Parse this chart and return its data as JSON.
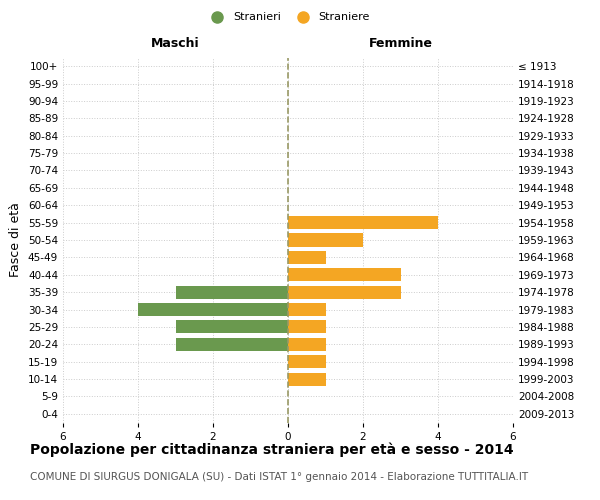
{
  "age_groups": [
    "0-4",
    "5-9",
    "10-14",
    "15-19",
    "20-24",
    "25-29",
    "30-34",
    "35-39",
    "40-44",
    "45-49",
    "50-54",
    "55-59",
    "60-64",
    "65-69",
    "70-74",
    "75-79",
    "80-84",
    "85-89",
    "90-94",
    "95-99",
    "100+"
  ],
  "birth_years": [
    "2009-2013",
    "2004-2008",
    "1999-2003",
    "1994-1998",
    "1989-1993",
    "1984-1988",
    "1979-1983",
    "1974-1978",
    "1969-1973",
    "1964-1968",
    "1959-1963",
    "1954-1958",
    "1949-1953",
    "1944-1948",
    "1939-1943",
    "1934-1938",
    "1929-1933",
    "1924-1928",
    "1919-1923",
    "1914-1918",
    "≤ 1913"
  ],
  "maschi_stranieri": [
    0,
    0,
    0,
    0,
    3,
    3,
    4,
    3,
    0,
    0,
    0,
    0,
    0,
    0,
    0,
    0,
    0,
    0,
    0,
    0,
    0
  ],
  "femmine_straniere": [
    0,
    0,
    1,
    1,
    1,
    1,
    1,
    3,
    3,
    1,
    2,
    4,
    0,
    0,
    0,
    0,
    0,
    0,
    0,
    0,
    0
  ],
  "stranieri_color": "#6a994e",
  "straniere_color": "#f4a623",
  "bar_height": 0.75,
  "xlim": 6,
  "title": "Popolazione per cittadinanza straniera per età e sesso - 2014",
  "subtitle": "COMUNE DI SIURGUS DONIGALA (SU) - Dati ISTAT 1° gennaio 2014 - Elaborazione TUTTITALIA.IT",
  "xlabel_left": "Maschi",
  "xlabel_right": "Femmine",
  "ylabel_left": "Fasce di età",
  "legend_stranieri": "Stranieri",
  "legend_straniere": "Straniere",
  "grid_color": "#cccccc",
  "center_line_color": "#999966",
  "bg_color": "#ffffff",
  "title_fontsize": 10,
  "subtitle_fontsize": 7.5,
  "tick_fontsize": 7.5,
  "label_fontsize": 9
}
